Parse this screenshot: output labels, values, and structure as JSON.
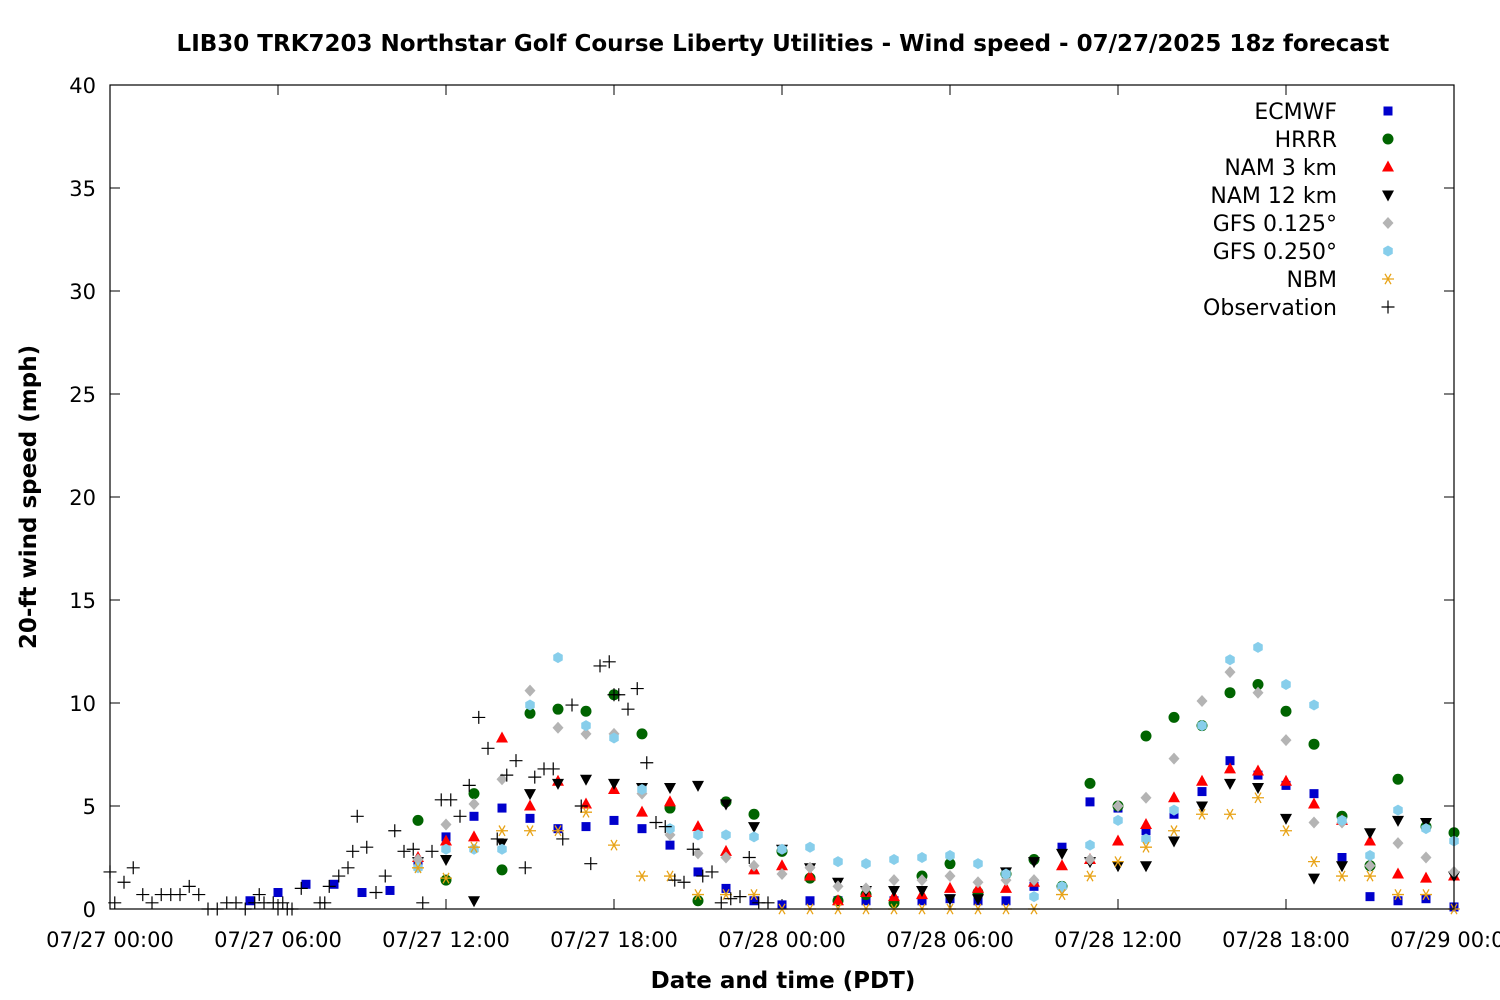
{
  "chart_data": {
    "type": "scatter",
    "title": "LIB30 TRK7203 Northstar Golf Course Liberty Utilities - Wind speed - 07/27/2025 18z forecast",
    "xlabel": "Date and time (PDT)",
    "ylabel": "20-ft wind speed (mph)",
    "x_unit": "hours since 07/27 00:00 PDT",
    "xlim": [
      0,
      48
    ],
    "ylim": [
      0,
      40
    ],
    "x_ticks": [
      {
        "x": 0,
        "label": "07/27 00:00"
      },
      {
        "x": 6,
        "label": "07/27 06:00"
      },
      {
        "x": 12,
        "label": "07/27 12:00"
      },
      {
        "x": 18,
        "label": "07/27 18:00"
      },
      {
        "x": 24,
        "label": "07/28 00:00"
      },
      {
        "x": 30,
        "label": "07/28 06:00"
      },
      {
        "x": 36,
        "label": "07/28 12:00"
      },
      {
        "x": 42,
        "label": "07/28 18:00"
      },
      {
        "x": 48,
        "label": "07/29 00:00"
      }
    ],
    "y_ticks": [
      0,
      5,
      10,
      15,
      20,
      25,
      30,
      35,
      40
    ],
    "grid": false,
    "legend_position": "top-right",
    "series": [
      {
        "name": "ECMWF",
        "marker": "square",
        "color": "#0000cc",
        "x": [
          5,
          6,
          7,
          8,
          9,
          10,
          11,
          12,
          13,
          14,
          15,
          16,
          17,
          18,
          19,
          20,
          21,
          22,
          23,
          24,
          25,
          26,
          27,
          28,
          29,
          30,
          31,
          32,
          33,
          34,
          35,
          36,
          37,
          38,
          39,
          40,
          41,
          42,
          43,
          44,
          45,
          46,
          47,
          48
        ],
        "y": [
          0.4,
          0.8,
          1.2,
          1.2,
          0.8,
          0.9,
          2.3,
          3.5,
          4.5,
          4.9,
          4.4,
          3.9,
          4.0,
          4.3,
          3.9,
          3.1,
          1.8,
          1.0,
          0.4,
          0.2,
          0.4,
          0.4,
          0.4,
          0.4,
          0.4,
          0.5,
          0.4,
          0.4,
          1.1,
          3.0,
          5.2,
          4.9,
          3.8,
          4.6,
          5.7,
          7.2,
          6.5,
          6.0,
          5.6,
          2.5,
          0.6,
          0.4,
          0.5,
          0.1
        ]
      },
      {
        "name": "HRRR",
        "marker": "circle",
        "color": "#006400",
        "x": [
          11,
          12,
          13,
          14,
          15,
          16,
          17,
          18,
          19,
          20,
          21,
          22,
          23,
          24,
          25,
          26,
          27,
          28,
          29,
          30,
          31,
          32,
          33,
          34,
          35,
          36,
          37,
          38,
          39,
          40,
          41,
          42,
          43,
          44,
          45,
          46,
          47,
          48
        ],
        "y": [
          4.3,
          1.4,
          5.6,
          1.9,
          9.5,
          9.7,
          9.6,
          10.4,
          8.5,
          4.9,
          0.4,
          5.2,
          4.6,
          2.8,
          1.5,
          0.4,
          0.7,
          0.3,
          1.6,
          2.2,
          0.8,
          1.7,
          2.4,
          1.1,
          6.1,
          5.0,
          8.4,
          9.3,
          8.9,
          10.5,
          10.9,
          9.6,
          8.0,
          4.5,
          2.1,
          6.3,
          4.0,
          3.7
        ]
      },
      {
        "name": "NAM 3 km",
        "marker": "triangle-up",
        "color": "#ff0000",
        "x": [
          11,
          12,
          13,
          14,
          15,
          16,
          17,
          18,
          19,
          20,
          21,
          22,
          23,
          24,
          25,
          26,
          27,
          28,
          29,
          30,
          31,
          32,
          33,
          34,
          35,
          36,
          37,
          38,
          39,
          40,
          41,
          42,
          43,
          44,
          45,
          46,
          47,
          48
        ],
        "y": [
          2.5,
          3.3,
          3.5,
          8.3,
          5.0,
          6.2,
          5.1,
          5.8,
          4.7,
          5.2,
          4.0,
          2.8,
          1.9,
          2.1,
          1.6,
          0.4,
          0.8,
          0.6,
          0.7,
          1.0,
          1.0,
          1.0,
          1.3,
          2.1,
          2.4,
          3.3,
          4.1,
          5.4,
          6.2,
          6.8,
          6.7,
          6.2,
          5.1,
          4.3,
          3.3,
          1.7,
          1.5,
          1.6
        ]
      },
      {
        "name": "NAM 12 km",
        "marker": "triangle-down",
        "color": "#000000",
        "x": [
          11,
          12,
          13,
          14,
          15,
          16,
          17,
          18,
          19,
          20,
          21,
          22,
          23,
          24,
          25,
          26,
          27,
          28,
          29,
          30,
          31,
          32,
          33,
          34,
          35,
          36,
          37,
          38,
          39,
          40,
          41,
          42,
          43,
          44,
          45,
          46,
          47,
          48
        ],
        "y": [
          2.3,
          2.4,
          0.4,
          3.2,
          5.6,
          6.1,
          6.3,
          6.1,
          5.9,
          5.9,
          6.0,
          5.1,
          4.0,
          2.9,
          2.0,
          1.3,
          0.9,
          0.9,
          0.9,
          0.5,
          0.5,
          1.8,
          2.3,
          2.7,
          2.3,
          2.1,
          2.1,
          3.3,
          5.0,
          6.1,
          5.9,
          4.4,
          1.5,
          2.1,
          3.7,
          4.3,
          4.2,
          1.6
        ]
      },
      {
        "name": "GFS 0.125°",
        "marker": "diamond",
        "color": "#b4b4b4",
        "x": [
          11,
          12,
          13,
          14,
          15,
          16,
          17,
          18,
          19,
          20,
          21,
          22,
          23,
          24,
          25,
          26,
          27,
          28,
          29,
          30,
          31,
          32,
          33,
          34,
          35,
          36,
          37,
          38,
          39,
          40,
          41,
          42,
          43,
          44,
          45,
          46,
          47,
          48
        ],
        "y": [
          2.4,
          4.1,
          5.1,
          6.3,
          10.6,
          8.8,
          8.5,
          8.5,
          5.6,
          3.6,
          2.7,
          2.5,
          2.1,
          1.7,
          2.0,
          1.1,
          1.0,
          1.4,
          1.4,
          1.6,
          1.3,
          1.4,
          1.4,
          1.0,
          2.4,
          5.0,
          5.4,
          7.3,
          10.1,
          11.5,
          10.5,
          8.2,
          4.2,
          4.2,
          2.1,
          3.2,
          2.5,
          1.8
        ]
      },
      {
        "name": "GFS 0.250°",
        "marker": "hexagon",
        "color": "#87ceeb",
        "x": [
          11,
          12,
          13,
          14,
          15,
          16,
          17,
          18,
          19,
          20,
          21,
          22,
          23,
          24,
          25,
          26,
          27,
          28,
          29,
          30,
          31,
          32,
          33,
          34,
          35,
          36,
          37,
          38,
          39,
          40,
          41,
          42,
          43,
          44,
          45,
          46,
          47,
          48
        ],
        "y": [
          2.0,
          2.9,
          2.9,
          2.9,
          9.9,
          12.2,
          8.9,
          8.3,
          5.8,
          3.9,
          3.6,
          3.6,
          3.5,
          2.9,
          3.0,
          2.3,
          2.2,
          2.4,
          2.5,
          2.6,
          2.2,
          1.7,
          0.6,
          1.1,
          3.1,
          4.3,
          3.4,
          4.8,
          8.9,
          12.1,
          12.7,
          10.9,
          9.9,
          4.3,
          2.6,
          4.8,
          3.9,
          3.3
        ]
      },
      {
        "name": "NBM",
        "marker": "asterisk",
        "color": "#e8a317",
        "x": [
          11,
          12,
          13,
          14,
          15,
          16,
          17,
          18,
          19,
          20,
          21,
          22,
          23,
          24,
          25,
          26,
          27,
          28,
          29,
          30,
          31,
          32,
          33,
          34,
          35,
          36,
          37,
          38,
          39,
          40,
          41,
          42,
          43,
          44,
          45,
          46,
          47,
          48
        ],
        "y": [
          2.0,
          1.5,
          3.0,
          3.8,
          3.8,
          3.8,
          4.7,
          3.1,
          1.6,
          1.6,
          0.7,
          0.7,
          0.7,
          0.0,
          0.0,
          0.0,
          0.0,
          0.0,
          0.0,
          0.0,
          0.0,
          0.0,
          0.0,
          0.7,
          1.6,
          2.3,
          3.0,
          3.8,
          4.6,
          4.6,
          5.4,
          3.8,
          2.3,
          1.6,
          1.6,
          0.7,
          0.7,
          0.0
        ]
      },
      {
        "name": "Observation",
        "marker": "plus",
        "color": "#000000",
        "x": [
          0,
          0.17,
          0.5,
          0.83,
          1.17,
          1.5,
          1.83,
          2.17,
          2.5,
          2.83,
          3.17,
          3.5,
          3.83,
          4.17,
          4.5,
          4.83,
          5.17,
          5.33,
          5.5,
          5.83,
          6.0,
          6.17,
          6.33,
          6.5,
          6.83,
          7.5,
          7.67,
          7.83,
          8.17,
          8.5,
          8.67,
          8.83,
          9.17,
          9.5,
          9.83,
          10.17,
          10.5,
          10.83,
          11.17,
          11.5,
          11.83,
          12.17,
          12.5,
          12.83,
          13.17,
          13.5,
          13.83,
          14.17,
          14.5,
          14.83,
          15.17,
          15.5,
          15.83,
          16.17,
          16.5,
          16.83,
          17.17,
          17.5,
          17.83,
          18.0,
          18.17,
          18.5,
          18.83,
          19.17,
          19.5,
          19.83,
          20.17,
          20.5,
          20.83,
          21.17,
          21.5,
          21.83,
          22.17,
          22.5,
          22.83,
          23.17,
          23.5
        ],
        "y": [
          1.8,
          0.3,
          1.3,
          2.0,
          0.7,
          0.3,
          0.7,
          0.7,
          0.7,
          1.1,
          0.7,
          0.0,
          0.0,
          0.3,
          0.3,
          0.0,
          0.3,
          0.7,
          0.3,
          0.3,
          0.0,
          0.3,
          0.0,
          0.0,
          1.0,
          0.3,
          0.3,
          1.1,
          1.6,
          2.0,
          2.8,
          4.5,
          3.0,
          0.8,
          1.6,
          3.8,
          2.8,
          2.9,
          0.3,
          2.8,
          5.3,
          5.3,
          4.5,
          6.0,
          9.3,
          7.8,
          3.4,
          6.5,
          7.2,
          2.0,
          6.4,
          6.8,
          6.8,
          3.4,
          9.9,
          5.0,
          2.2,
          11.8,
          12.0,
          10.4,
          10.4,
          9.7,
          10.7,
          7.1,
          4.2,
          4.0,
          1.4,
          1.3,
          2.9,
          1.6,
          1.8,
          0.3,
          0.5,
          0.6,
          2.5,
          0.3,
          0.3
        ]
      }
    ]
  }
}
